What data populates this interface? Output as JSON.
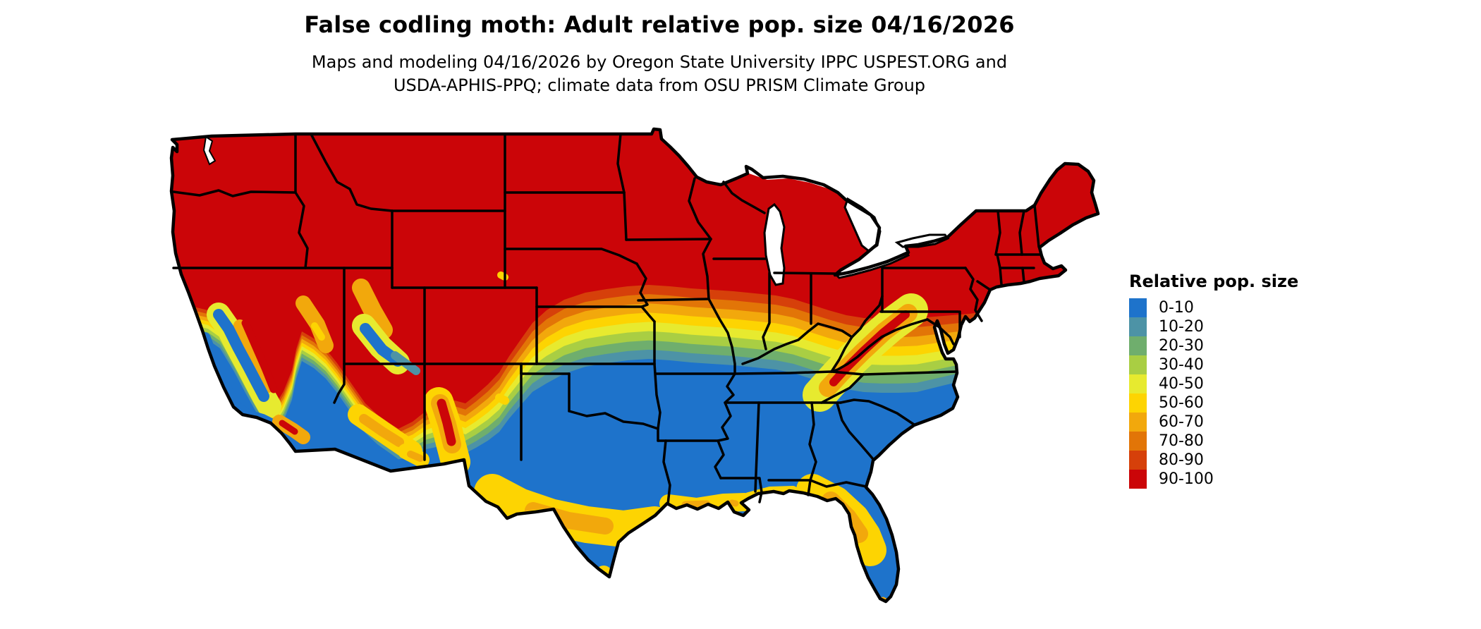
{
  "header": {
    "title": "False codling moth: Adult relative pop. size 04/16/2026",
    "subtitle_line1": "Maps and modeling 04/16/2026 by Oregon State University IPPC USPEST.ORG and",
    "subtitle_line2": "USDA-APHIS-PPQ; climate data from OSU PRISM Climate Group"
  },
  "legend": {
    "title": "Relative pop. size",
    "items": [
      {
        "label": "0-10",
        "color": "#1e73cb"
      },
      {
        "label": "10-20",
        "color": "#4d93a6"
      },
      {
        "label": "20-30",
        "color": "#6fae6d"
      },
      {
        "label": "30-40",
        "color": "#a9ce43"
      },
      {
        "label": "40-50",
        "color": "#e7ea2f"
      },
      {
        "label": "50-60",
        "color": "#fdd402"
      },
      {
        "label": "60-70",
        "color": "#f2a80c"
      },
      {
        "label": "70-80",
        "color": "#e27507"
      },
      {
        "label": "80-90",
        "color": "#d6400a"
      },
      {
        "label": "90-100",
        "color": "#cb0508"
      }
    ]
  },
  "map": {
    "border_color": "#000000",
    "water_color": "#ffffff"
  }
}
